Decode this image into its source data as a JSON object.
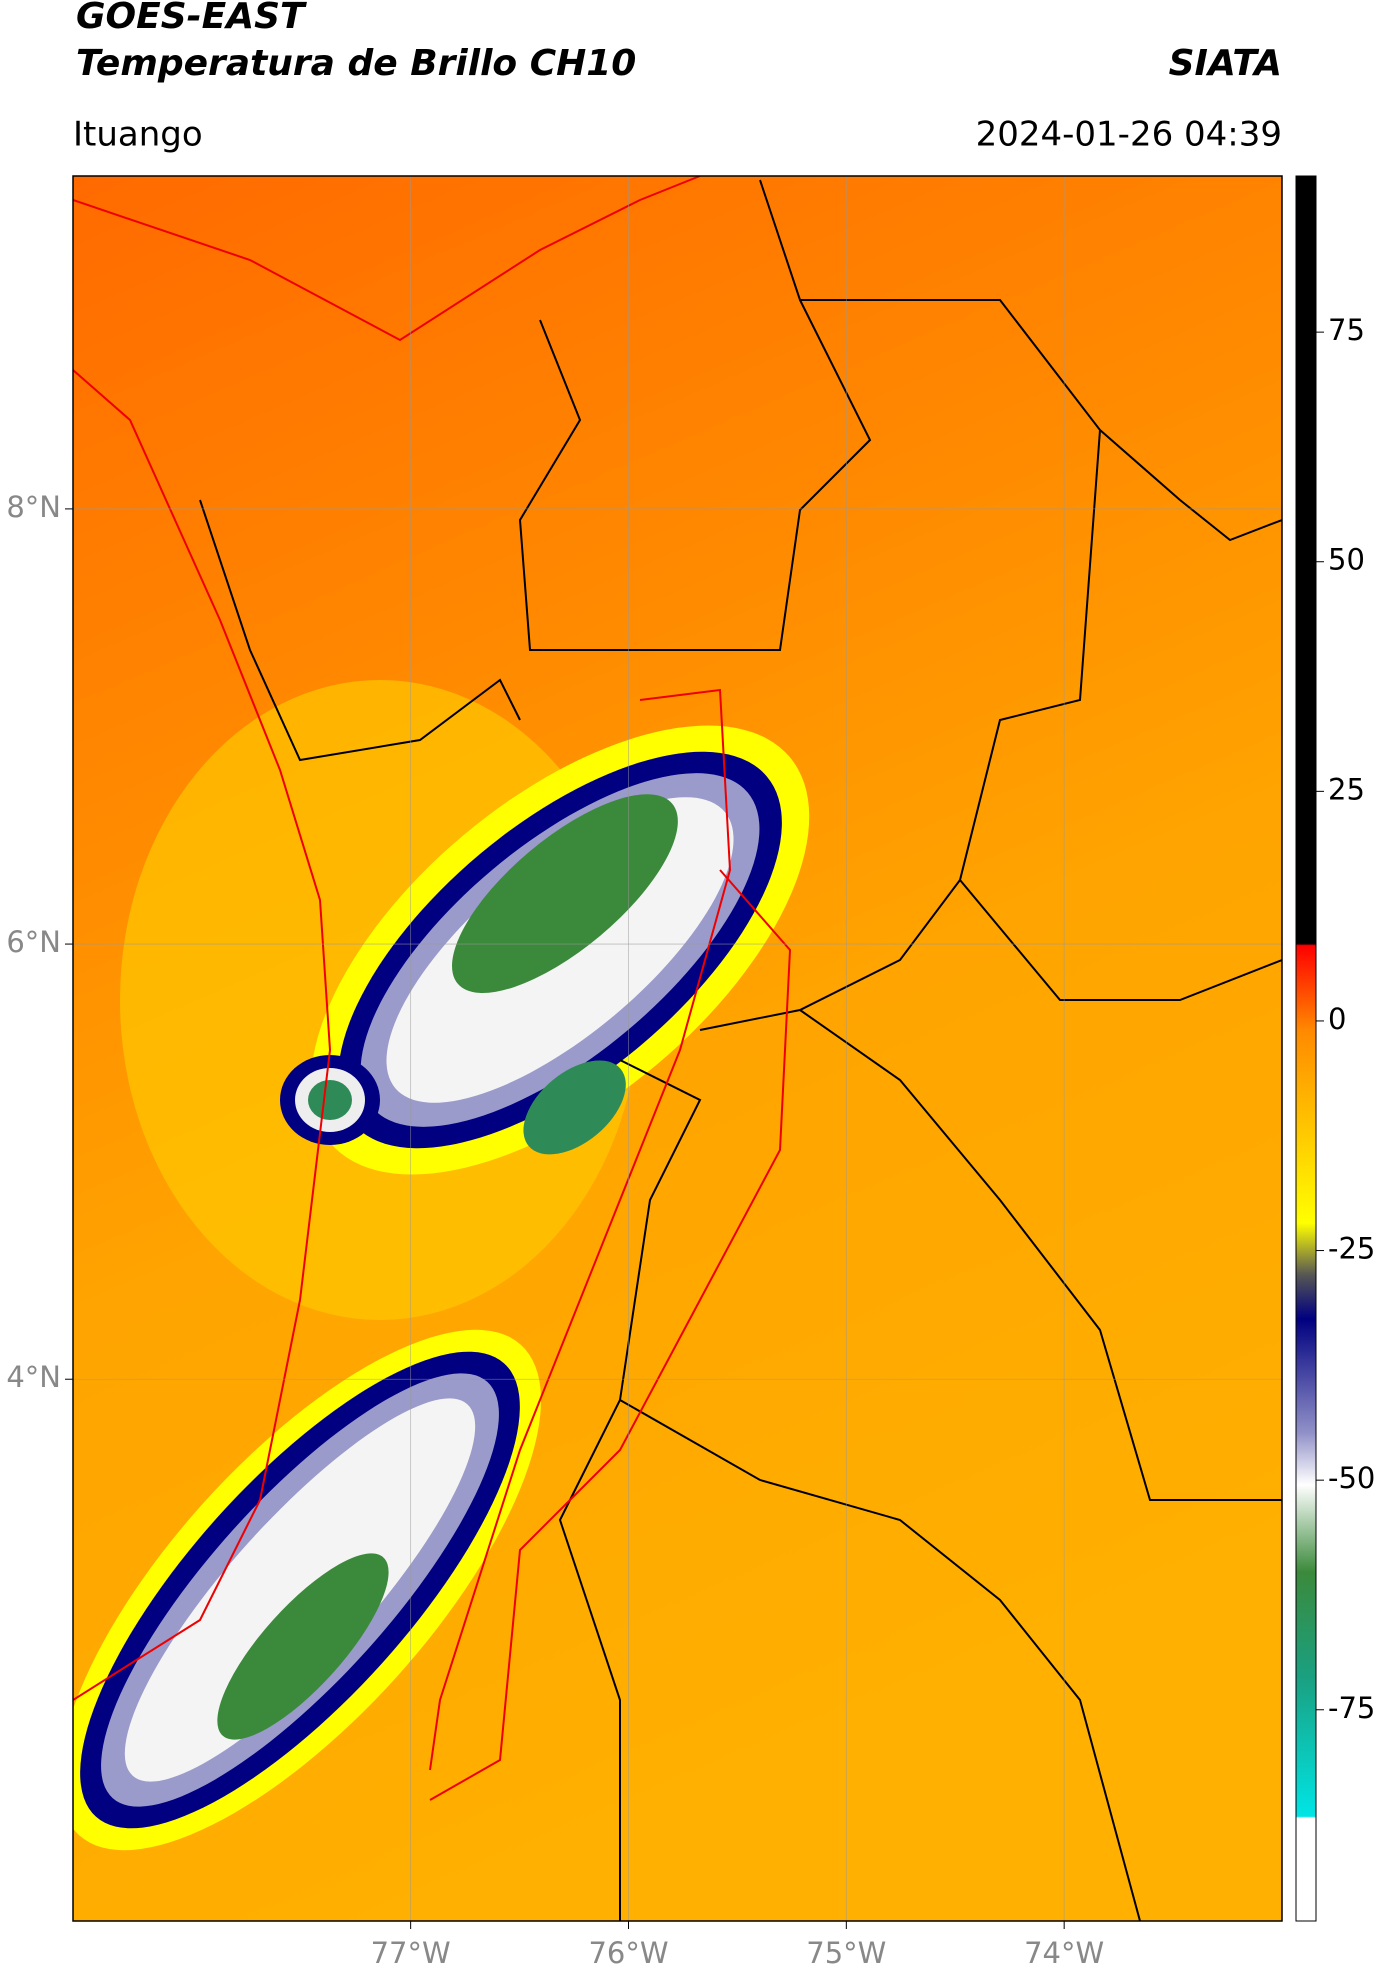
{
  "map": {
    "title": "GOES-EAST",
    "subtitle": "Temperatura de Brillo CH10",
    "source": "SIATA",
    "location": "Ituango",
    "datetime": "2024-01-26 04:39",
    "xlim": [
      -78.55,
      -73.0
    ],
    "ylim": [
      1.51,
      9.53
    ],
    "xticks": [
      {
        "value": -77,
        "label": "77°W"
      },
      {
        "value": -76,
        "label": "76°W"
      },
      {
        "value": -75,
        "label": "75°W"
      },
      {
        "value": -74,
        "label": "74°W"
      }
    ],
    "yticks": [
      {
        "value": 8,
        "label": "8°N"
      },
      {
        "value": 6,
        "label": "6°N"
      },
      {
        "value": 4,
        "label": "4°N"
      }
    ],
    "grid": true,
    "colorbar": {
      "clim": [
        -98,
        92
      ],
      "ticks": [
        75,
        50,
        25,
        0,
        -25,
        -50,
        -75
      ]
    }
  }
}
